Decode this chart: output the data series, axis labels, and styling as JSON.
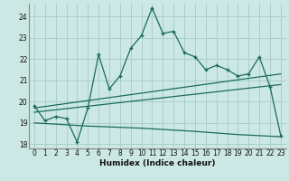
{
  "title": "",
  "xlabel": "Humidex (Indice chaleur)",
  "bg_color": "#cce8e4",
  "grid_color": "#aacfcb",
  "line_color": "#1a6b5e",
  "xlim": [
    -0.5,
    23.5
  ],
  "ylim": [
    17.8,
    24.6
  ],
  "xticks": [
    0,
    1,
    2,
    3,
    4,
    5,
    6,
    7,
    8,
    9,
    10,
    11,
    12,
    13,
    14,
    15,
    16,
    17,
    18,
    19,
    20,
    21,
    22,
    23
  ],
  "yticks": [
    18,
    19,
    20,
    21,
    22,
    23,
    24
  ],
  "line1_x": [
    0,
    1,
    2,
    3,
    4,
    5,
    6,
    7,
    8,
    9,
    10,
    11,
    12,
    13,
    14,
    15,
    16,
    17,
    18,
    19,
    20,
    21,
    22,
    23
  ],
  "line1_y": [
    19.8,
    19.1,
    19.3,
    19.2,
    18.1,
    19.7,
    22.2,
    20.6,
    21.2,
    22.5,
    23.1,
    24.4,
    23.2,
    23.3,
    22.3,
    22.1,
    21.5,
    21.7,
    21.5,
    21.2,
    21.3,
    22.1,
    20.7,
    18.4
  ],
  "line2_x": [
    0,
    23
  ],
  "line2_y": [
    19.7,
    21.3
  ],
  "line3_x": [
    0,
    23
  ],
  "line3_y": [
    19.5,
    20.8
  ],
  "line4_x": [
    0,
    5,
    10,
    15,
    19,
    23
  ],
  "line4_y": [
    19.0,
    18.85,
    18.75,
    18.6,
    18.45,
    18.35
  ]
}
